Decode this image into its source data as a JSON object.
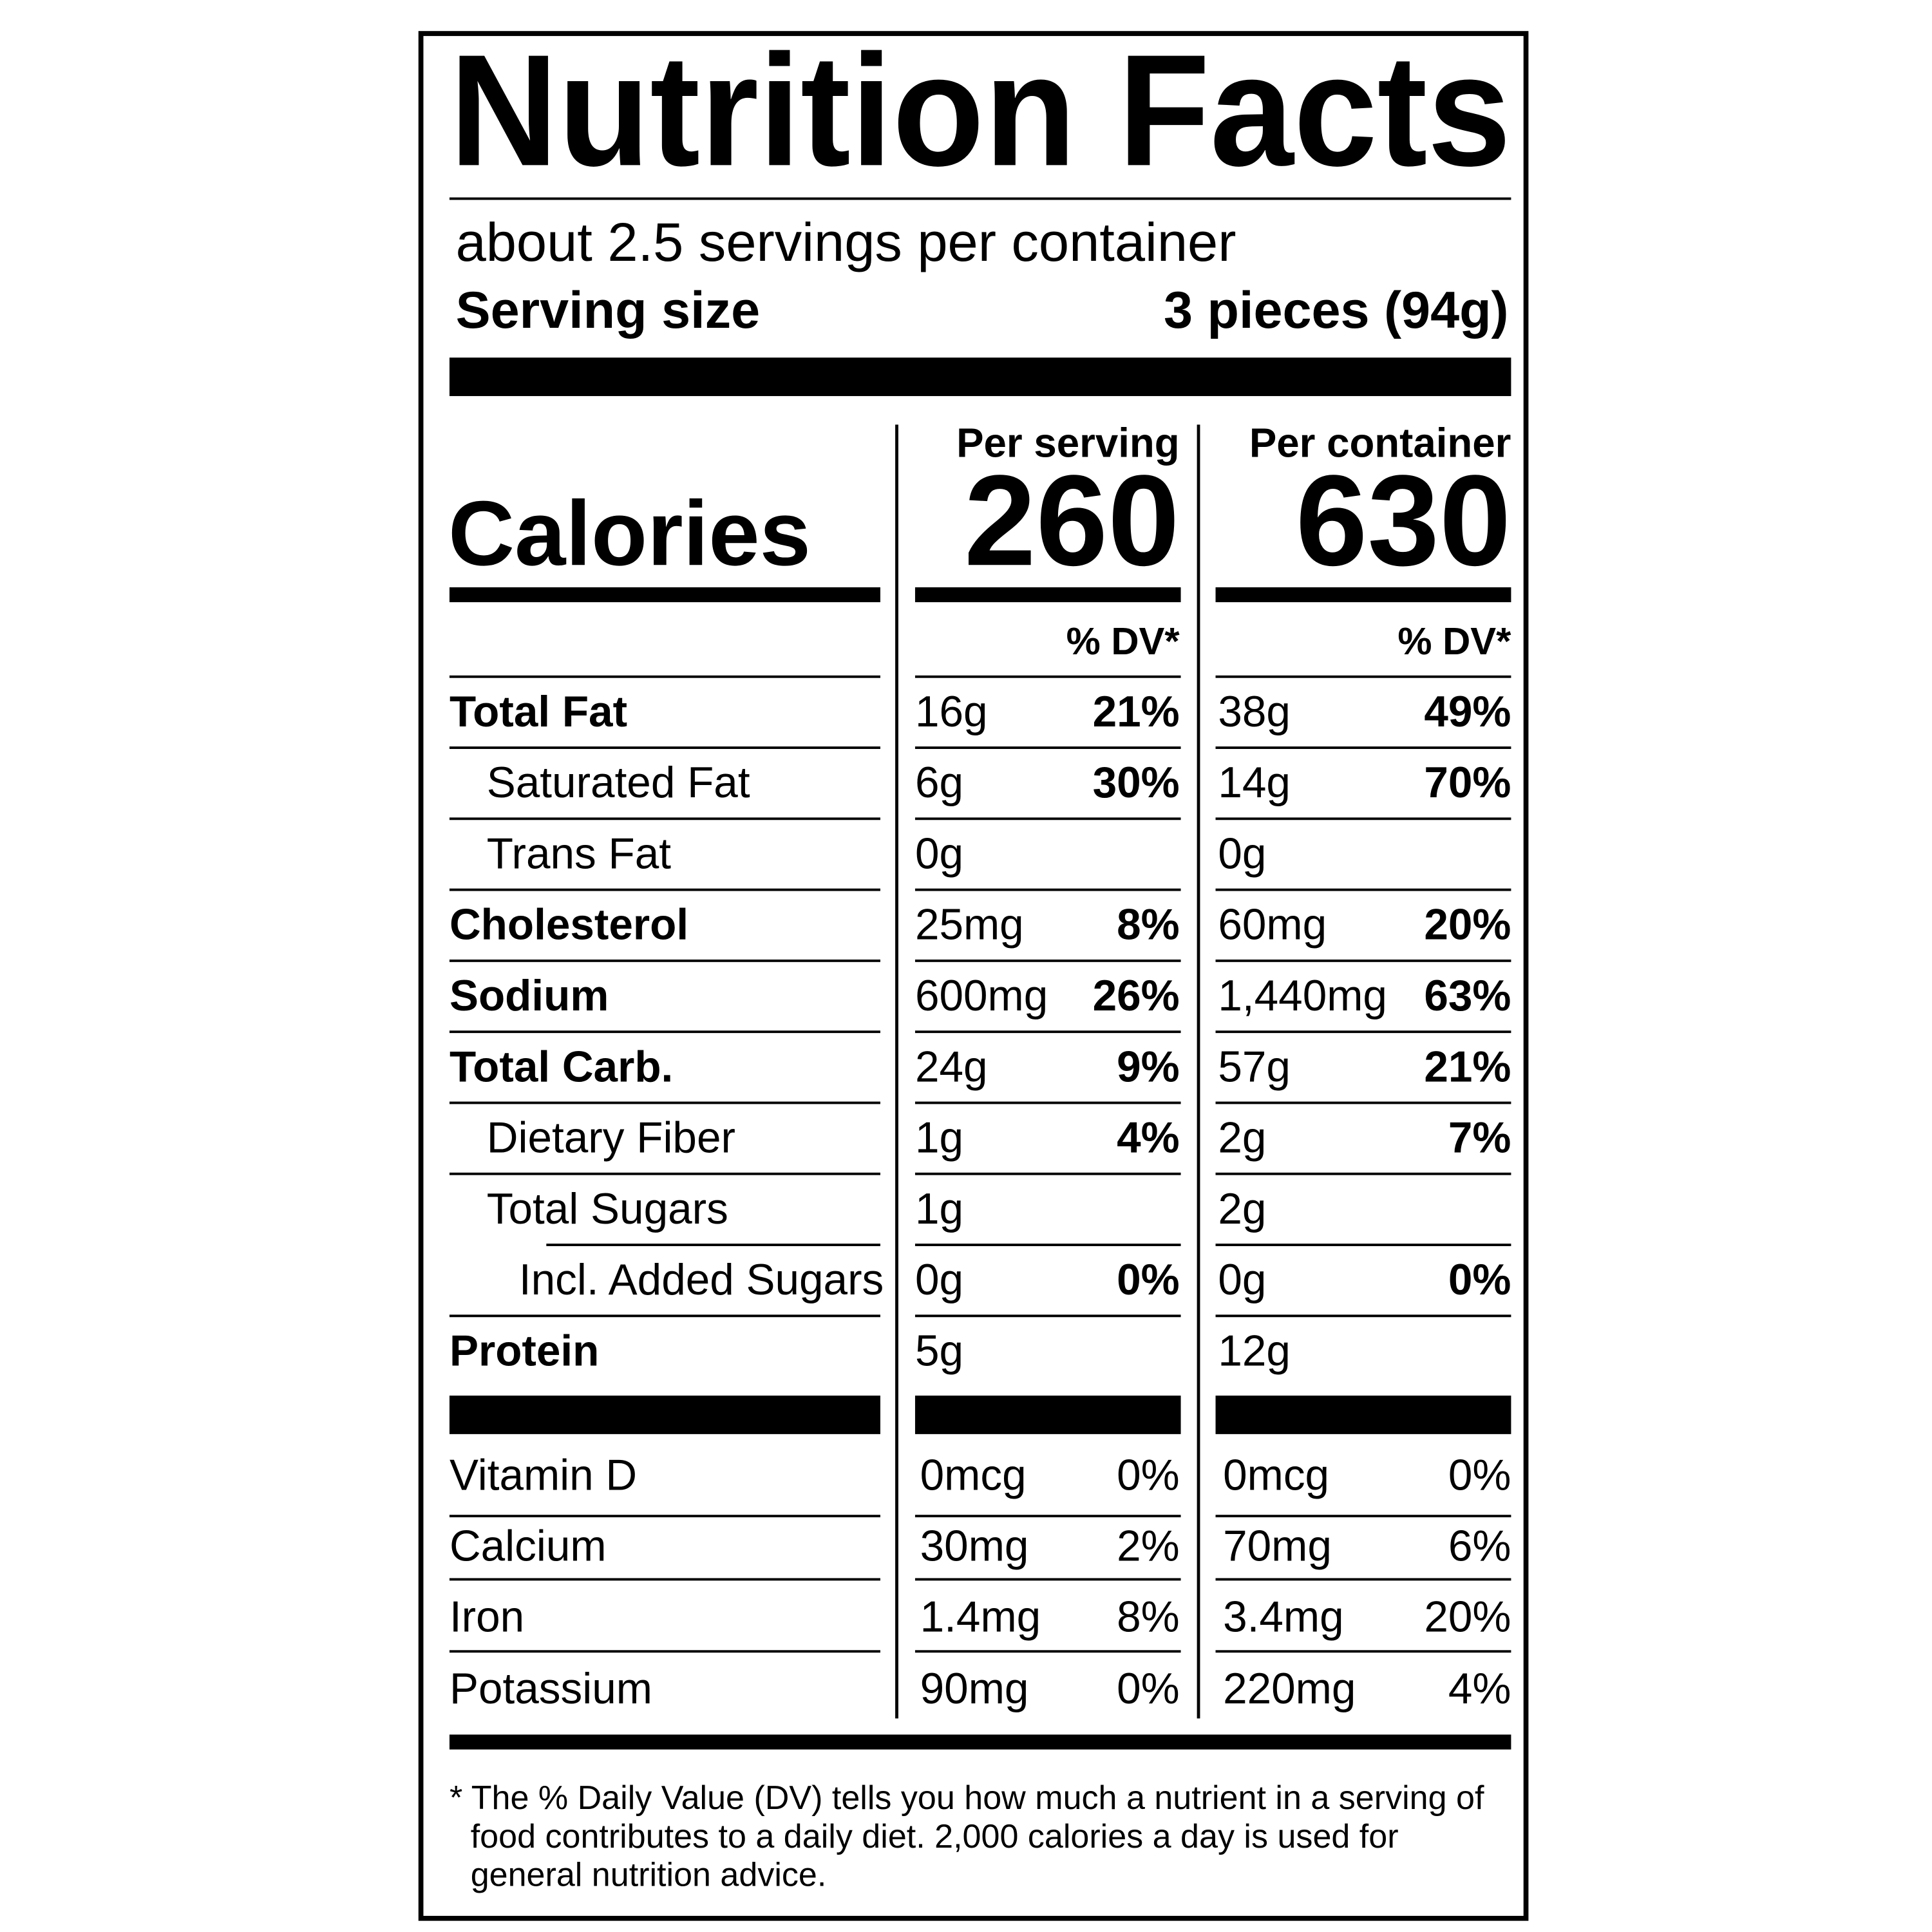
{
  "title": "Nutrition Facts",
  "servings": "about 2.5 servings per container",
  "serving_size": {
    "label": "Serving size",
    "value": "3 pieces (94g)"
  },
  "columns": [
    "Per serving",
    "Per container"
  ],
  "calories": {
    "label": "Calories",
    "values": [
      "260",
      "630"
    ]
  },
  "dv_header": "% DV*",
  "nutrients": [
    {
      "name": "Total Fat",
      "bold": true,
      "indent": 0,
      "serving": {
        "amount": "16g",
        "dv": "21%"
      },
      "container": {
        "amount": "38g",
        "dv": "49%"
      }
    },
    {
      "name": "Saturated Fat",
      "bold": false,
      "indent": 1,
      "serving": {
        "amount": "6g",
        "dv": "30%"
      },
      "container": {
        "amount": "14g",
        "dv": "70%"
      }
    },
    {
      "name": "Trans Fat",
      "bold": false,
      "indent": 1,
      "serving": {
        "amount": "0g"
      },
      "container": {
        "amount": "0g"
      }
    },
    {
      "name": "Cholesterol",
      "bold": true,
      "indent": 0,
      "serving": {
        "amount": "25mg",
        "dv": "8%"
      },
      "container": {
        "amount": "60mg",
        "dv": "20%"
      }
    },
    {
      "name": "Sodium",
      "bold": true,
      "indent": 0,
      "serving": {
        "amount": "600mg",
        "dv": "26%"
      },
      "container": {
        "amount": "1,440mg",
        "dv": "63%"
      }
    },
    {
      "name": "Total Carb.",
      "bold": true,
      "indent": 0,
      "serving": {
        "amount": "24g",
        "dv": "9%"
      },
      "container": {
        "amount": "57g",
        "dv": "21%"
      }
    },
    {
      "name": "Dietary Fiber",
      "bold": false,
      "indent": 1,
      "serving": {
        "amount": "1g",
        "dv": "4%"
      },
      "container": {
        "amount": "2g",
        "dv": "7%"
      }
    },
    {
      "name": "Total Sugars",
      "bold": false,
      "indent": 1,
      "serving": {
        "amount": "1g"
      },
      "container": {
        "amount": "2g"
      }
    },
    {
      "name": "Incl. Added Sugars",
      "bold": false,
      "indent": 2,
      "serving": {
        "amount": "0g",
        "dv": "0%"
      },
      "container": {
        "amount": "0g",
        "dv": "0%"
      }
    },
    {
      "name": "Protein",
      "bold": true,
      "indent": 0,
      "serving": {
        "amount": "5g"
      },
      "container": {
        "amount": "12g"
      }
    }
  ],
  "vitamins": [
    {
      "name": "Vitamin D",
      "serving": {
        "amount": "0mcg",
        "dv": "0%"
      },
      "container": {
        "amount": "0mcg",
        "dv": "0%"
      }
    },
    {
      "name": "Calcium",
      "serving": {
        "amount": "30mg",
        "dv": "2%"
      },
      "container": {
        "amount": "70mg",
        "dv": "6%"
      }
    },
    {
      "name": "Iron",
      "serving": {
        "amount": "1.4mg",
        "dv": "8%"
      },
      "container": {
        "amount": "3.4mg",
        "dv": "20%"
      }
    },
    {
      "name": "Potassium",
      "serving": {
        "amount": "90mg",
        "dv": "0%"
      },
      "container": {
        "amount": "220mg",
        "dv": "4%"
      }
    }
  ],
  "footnote": [
    "* The % Daily Value (DV) tells you how much a nutrient in a serving of",
    "food contributes to a daily diet. 2,000 calories a day is used for",
    "general nutrition advice."
  ]
}
